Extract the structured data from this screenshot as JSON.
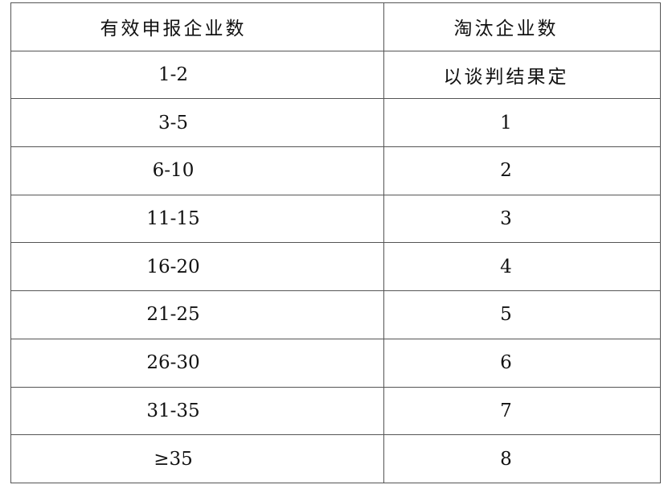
{
  "table": {
    "headers": [
      "有效申报企业数",
      "淘汰企业数"
    ],
    "rows": [
      [
        "1-2",
        "以谈判结果定"
      ],
      [
        "3-5",
        "1"
      ],
      [
        "6-10",
        "2"
      ],
      [
        "11-15",
        "3"
      ],
      [
        "16-20",
        "4"
      ],
      [
        "21-25",
        "5"
      ],
      [
        "26-30",
        "6"
      ],
      [
        "31-35",
        "7"
      ],
      [
        "≥35",
        "8"
      ]
    ]
  }
}
